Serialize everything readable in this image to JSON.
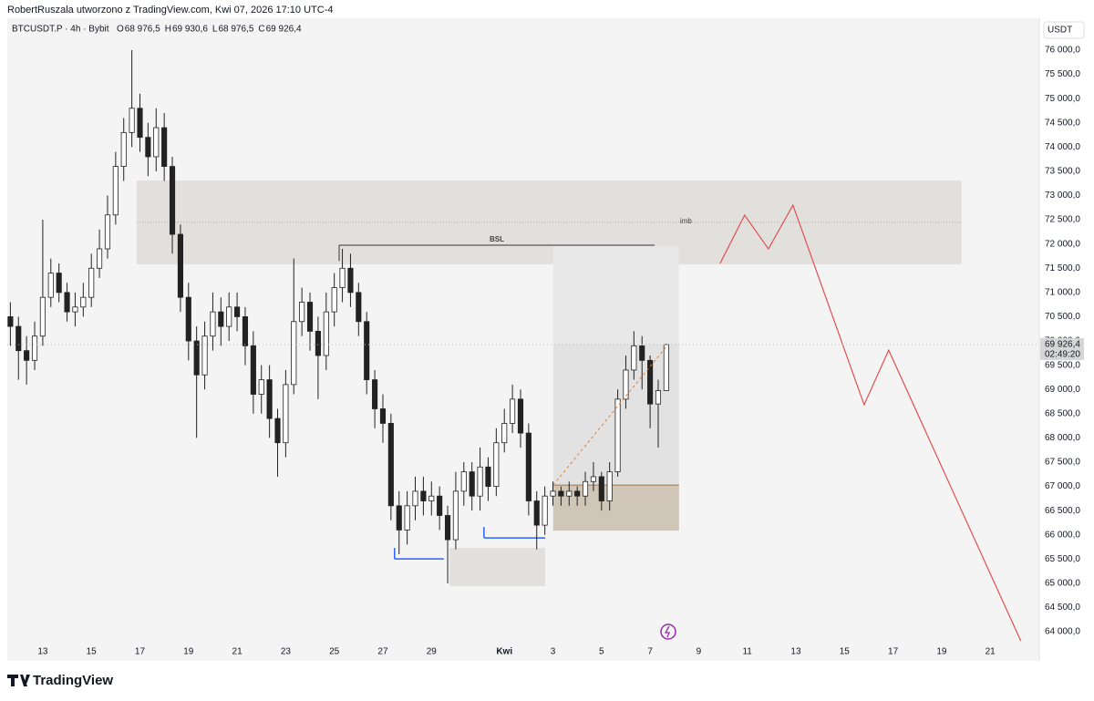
{
  "header": {
    "title": "RobertRuszala utworzono z TradingView.com, Kwi 07, 2026 17:10 UTC-4",
    "symbol": "BTCUSDT.P · 4h · Bybit",
    "ohlc": [
      {
        "key": "O",
        "value": "68 976,5"
      },
      {
        "key": "H",
        "value": "69 930,6"
      },
      {
        "key": "L",
        "value": "68 976,5"
      },
      {
        "key": "C",
        "value": "69 926,4"
      }
    ],
    "currency": "USDT",
    "last_price_label": "69 926,4",
    "countdown": "02:49:20",
    "brand": "TradingView"
  },
  "chart_data": {
    "type": "candlestick",
    "up_color": "#ffffff",
    "down_color": "#222222",
    "wick_color": "#222222",
    "xlim": [
      -1.46,
      41.02
    ],
    "ylim": [
      63400,
      76620
    ],
    "xticks": [
      {
        "value": 0,
        "label": "13"
      },
      {
        "value": 2,
        "label": "15"
      },
      {
        "value": 4,
        "label": "17"
      },
      {
        "value": 6,
        "label": "19"
      },
      {
        "value": 8,
        "label": "21"
      },
      {
        "value": 10,
        "label": "23"
      },
      {
        "value": 12,
        "label": "25"
      },
      {
        "value": 14,
        "label": "27"
      },
      {
        "value": 16,
        "label": "29"
      },
      {
        "value": 19,
        "label": "Kwi"
      },
      {
        "value": 21,
        "label": "3"
      },
      {
        "value": 23,
        "label": "5"
      },
      {
        "value": 25,
        "label": "7"
      },
      {
        "value": 27,
        "label": "9"
      },
      {
        "value": 29,
        "label": "11"
      },
      {
        "value": 31,
        "label": "13"
      },
      {
        "value": 33,
        "label": "15"
      },
      {
        "value": 35,
        "label": "17"
      },
      {
        "value": 37,
        "label": "19"
      },
      {
        "value": 39,
        "label": "21"
      }
    ],
    "yticks": [
      {
        "value": 64000,
        "label": "64 000,0"
      },
      {
        "value": 64500,
        "label": "64 500,0"
      },
      {
        "value": 65000,
        "label": "65 000,0"
      },
      {
        "value": 65500,
        "label": "65 500,0"
      },
      {
        "value": 66000,
        "label": "66 000,0"
      },
      {
        "value": 66500,
        "label": "66 500,0"
      },
      {
        "value": 67000,
        "label": "67 000,0"
      },
      {
        "value": 67500,
        "label": "67 500,0"
      },
      {
        "value": 68000,
        "label": "68 000,0"
      },
      {
        "value": 68500,
        "label": "68 500,0"
      },
      {
        "value": 69000,
        "label": "69 000,0"
      },
      {
        "value": 69500,
        "label": "69 500,0"
      },
      {
        "value": 70000,
        "label": "70 000,0"
      },
      {
        "value": 70500,
        "label": "70 500,0"
      },
      {
        "value": 71000,
        "label": "71 000,0"
      },
      {
        "value": 71500,
        "label": "71 500,0"
      },
      {
        "value": 72000,
        "label": "72 000,0"
      },
      {
        "value": 72500,
        "label": "72 500,0"
      },
      {
        "value": 73000,
        "label": "73 000,0"
      },
      {
        "value": 73500,
        "label": "73 500,0"
      },
      {
        "value": 74000,
        "label": "74 000,0"
      },
      {
        "value": 74500,
        "label": "74 500,0"
      },
      {
        "value": 75000,
        "label": "75 000,0"
      },
      {
        "value": 75500,
        "label": "75 500,0"
      },
      {
        "value": 76000,
        "label": "76 000,0"
      }
    ],
    "x": [
      -1.333,
      -1,
      -0.667,
      -0.333,
      0,
      0.333,
      0.667,
      1,
      1.333,
      1.667,
      2,
      2.333,
      2.667,
      3,
      3.333,
      3.667,
      4,
      4.333,
      4.667,
      5,
      5.333,
      5.667,
      6,
      6.333,
      6.667,
      7,
      7.333,
      7.667,
      8,
      8.333,
      8.667,
      9,
      9.333,
      9.667,
      10,
      10.333,
      10.667,
      11,
      11.333,
      11.667,
      12,
      12.333,
      12.667,
      13,
      13.333,
      13.667,
      14,
      14.333,
      14.667,
      15,
      15.333,
      15.667,
      16,
      16.333,
      16.667,
      17,
      17.333,
      17.667,
      18,
      18.333,
      18.667,
      19,
      19.333,
      19.667,
      20,
      20.333,
      20.667,
      21,
      21.333,
      21.667,
      22,
      22.333,
      22.667,
      23,
      23.333,
      23.667,
      24,
      24.333,
      24.667,
      25,
      25.333,
      25.667
    ],
    "open": [
      70500,
      70300,
      69800,
      69600,
      70100,
      70900,
      71400,
      71000,
      70600,
      70700,
      70900,
      71500,
      71900,
      72600,
      73600,
      74300,
      74800,
      74200,
      73800,
      74400,
      73600,
      72200,
      70900,
      70000,
      69300,
      70100,
      70600,
      70300,
      70700,
      70500,
      69900,
      68900,
      69200,
      68400,
      67900,
      69100,
      70400,
      70800,
      70200,
      69700,
      70600,
      71100,
      71500,
      71000,
      70400,
      69200,
      68600,
      68300,
      66600,
      66100,
      66600,
      66900,
      66700,
      66800,
      66400,
      65900,
      66900,
      67300,
      66800,
      67400,
      67000,
      67900,
      68300,
      68800,
      68100,
      66700,
      66200,
      66800,
      66900,
      66800,
      66900,
      66800,
      67100,
      67200,
      66700,
      67300,
      68800,
      69400,
      69900,
      69600,
      68700,
      68976.5
    ],
    "high": [
      70800,
      70500,
      70100,
      70400,
      72500,
      71700,
      71600,
      71200,
      71000,
      71200,
      71800,
      72300,
      73000,
      73900,
      74600,
      76000,
      75100,
      74500,
      74800,
      74700,
      73800,
      72400,
      71200,
      70300,
      70400,
      71000,
      70900,
      71000,
      71000,
      70700,
      70200,
      69500,
      69500,
      68600,
      69400,
      71700,
      71100,
      71000,
      70500,
      71000,
      71400,
      71900,
      71800,
      71200,
      70600,
      69400,
      68900,
      68500,
      66900,
      66900,
      67200,
      67200,
      67100,
      67000,
      66600,
      67300,
      67500,
      67500,
      67800,
      67600,
      68200,
      68600,
      69100,
      69000,
      68300,
      66900,
      67000,
      67100,
      67000,
      67100,
      67000,
      67300,
      67500,
      67300,
      67500,
      69000,
      69700,
      70200,
      70100,
      69700,
      69200,
      69930.6
    ],
    "low": [
      69900,
      69200,
      69100,
      69400,
      69900,
      70700,
      70800,
      70400,
      70300,
      70500,
      70700,
      71300,
      71700,
      72400,
      73300,
      74000,
      73900,
      73400,
      73500,
      73300,
      71800,
      70600,
      69600,
      68000,
      69000,
      69800,
      69900,
      70000,
      70200,
      69500,
      68500,
      68500,
      68000,
      67200,
      67600,
      68900,
      70100,
      69800,
      68800,
      69400,
      70300,
      70800,
      70700,
      70100,
      68900,
      68200,
      67900,
      66300,
      65600,
      65800,
      66300,
      66400,
      66400,
      66100,
      65000,
      65700,
      66600,
      66500,
      66500,
      66700,
      66800,
      67700,
      68100,
      67800,
      66400,
      65700,
      66000,
      66600,
      66600,
      66600,
      66600,
      66600,
      66900,
      66500,
      66500,
      67200,
      68600,
      69200,
      69000,
      68200,
      67800,
      68976.5
    ],
    "close": [
      70300,
      69800,
      69600,
      70100,
      70900,
      71400,
      71000,
      70600,
      70700,
      70900,
      71500,
      71900,
      72600,
      73600,
      74300,
      74800,
      74200,
      73800,
      74400,
      73600,
      72200,
      70900,
      70000,
      69300,
      70100,
      70600,
      70300,
      70700,
      70500,
      69900,
      68900,
      69200,
      68400,
      67900,
      69100,
      70400,
      70800,
      70200,
      69700,
      70600,
      71100,
      71500,
      71000,
      70400,
      69200,
      68600,
      68300,
      66600,
      66100,
      66600,
      66900,
      66700,
      66800,
      66400,
      65900,
      66900,
      67300,
      66800,
      67400,
      67000,
      67900,
      68300,
      68800,
      68100,
      66700,
      66200,
      66800,
      66900,
      66800,
      66900,
      66800,
      67100,
      67200,
      66700,
      67300,
      68800,
      69400,
      69900,
      69600,
      68700,
      68976.5,
      69926.4
    ],
    "last_price": 69926.4,
    "drawings": {
      "imb": {
        "label": "imb",
        "x": [
          3.87,
          37.82
        ],
        "y": [
          71580,
          73310
        ],
        "mid": 72450
      },
      "bsl": {
        "label": "BSL",
        "x": [
          12.2,
          25.18
        ],
        "y": 71975,
        "base": 71650
      },
      "position": {
        "x": [
          21.01,
          26.19
        ],
        "target": 71956,
        "current": 69924,
        "entry": 67027,
        "stop": 66087
      },
      "demand": {
        "x": [
          16.74,
          20.68
        ],
        "y": [
          64940,
          65730
        ]
      },
      "lows": [
        {
          "x": [
            14.48,
            16.51
          ],
          "y": 65504
        },
        {
          "x": [
            18.16,
            20.68
          ],
          "y": 65937
        }
      ],
      "trend": {
        "x": [
          21.01,
          25.74
        ],
        "y": [
          67027,
          69926.4
        ]
      },
      "projection": {
        "color": "#e05050",
        "x": [
          27.88,
          28.89,
          29.87,
          30.88,
          33.81,
          34.82,
          40.26
        ],
        "y": [
          71598,
          72595,
          71899,
          72802,
          68683,
          69811,
          63811
        ]
      }
    }
  }
}
